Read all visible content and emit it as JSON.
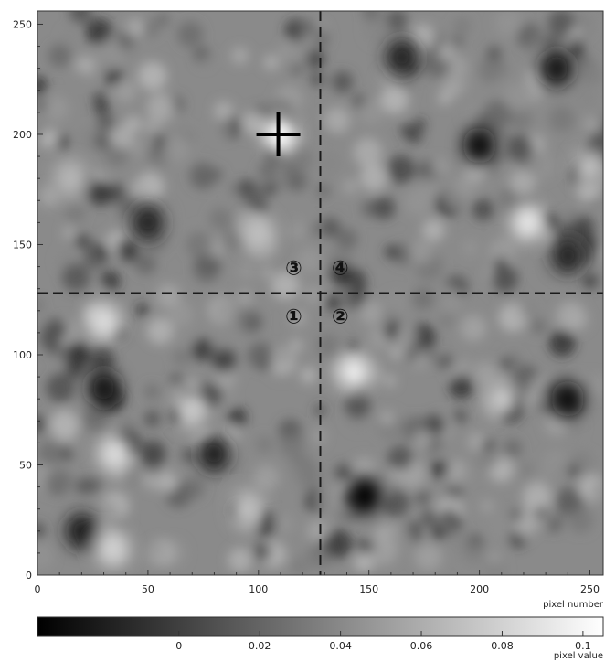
{
  "chart_data": {
    "type": "heatmap",
    "colormap": "grayscale",
    "x_range": [
      0,
      256
    ],
    "y_range": [
      0,
      256
    ],
    "xticks": [
      0,
      50,
      100,
      150,
      200,
      250
    ],
    "yticks": [
      0,
      50,
      100,
      150,
      200,
      250
    ],
    "xlabel": "pixel number",
    "colorbar": {
      "label": "pixel value",
      "range": [
        -0.035,
        0.105
      ],
      "ticks": [
        0,
        0.02,
        0.04,
        0.06,
        0.08,
        0.1
      ],
      "tick_labels": [
        "0",
        "0.02",
        "0.04",
        "0.06",
        "0.08",
        "0.1"
      ]
    },
    "dashed_lines": {
      "x": 128,
      "y": 128
    },
    "cross_marker": {
      "x": 109,
      "y": 200
    },
    "quadrant_markers": [
      {
        "label": "①",
        "x": 116,
        "y": 117
      },
      {
        "label": "②",
        "x": 137,
        "y": 117
      },
      {
        "label": "③",
        "x": 116,
        "y": 139
      },
      {
        "label": "④",
        "x": 137,
        "y": 139
      }
    ],
    "bright_features": [
      {
        "x": 110,
        "y": 200,
        "value": 0.105
      },
      {
        "x": 143,
        "y": 92,
        "value": 0.095
      },
      {
        "x": 222,
        "y": 160,
        "value": 0.09
      },
      {
        "x": 30,
        "y": 115,
        "value": 0.085
      },
      {
        "x": 35,
        "y": 55,
        "value": 0.085
      },
      {
        "x": 34,
        "y": 12,
        "value": 0.08
      },
      {
        "x": 210,
        "y": 80,
        "value": 0.075
      },
      {
        "x": 70,
        "y": 75,
        "value": 0.075
      },
      {
        "x": 95,
        "y": 30,
        "value": 0.07
      },
      {
        "x": 250,
        "y": 185,
        "value": 0.07
      },
      {
        "x": 100,
        "y": 155,
        "value": 0.07
      },
      {
        "x": 15,
        "y": 180,
        "value": 0.065
      }
    ],
    "dark_features": [
      {
        "x": 148,
        "y": 36,
        "value": -0.035
      },
      {
        "x": 240,
        "y": 80,
        "value": -0.03
      },
      {
        "x": 200,
        "y": 195,
        "value": -0.028
      },
      {
        "x": 235,
        "y": 230,
        "value": -0.022
      },
      {
        "x": 30,
        "y": 85,
        "value": -0.025
      },
      {
        "x": 20,
        "y": 20,
        "value": -0.02
      },
      {
        "x": 80,
        "y": 55,
        "value": -0.02
      },
      {
        "x": 165,
        "y": 235,
        "value": -0.015
      },
      {
        "x": 50,
        "y": 160,
        "value": -0.015
      },
      {
        "x": 240,
        "y": 145,
        "value": -0.015
      }
    ]
  }
}
